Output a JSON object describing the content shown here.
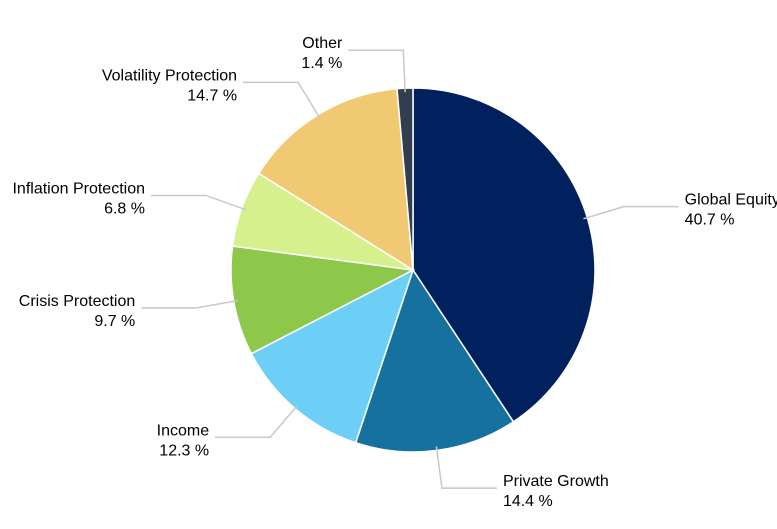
{
  "chart_data": {
    "type": "pie",
    "categories": [
      "Global Equity",
      "Private Growth",
      "Income",
      "Crisis Protection",
      "Inflation Protection",
      "Volatility Protection",
      "Other"
    ],
    "values": [
      40.7,
      14.4,
      12.3,
      9.7,
      6.8,
      14.7,
      1.4
    ],
    "value_labels": [
      "40.7 %",
      "14.4 %",
      "12.3 %",
      "9.7 %",
      "6.8 %",
      "14.7 %",
      "1.4 %"
    ],
    "colors": [
      "#00215e",
      "#16719e",
      "#6dcff6",
      "#8dc84b",
      "#d6f08e",
      "#f1c973",
      "#303e50"
    ]
  }
}
